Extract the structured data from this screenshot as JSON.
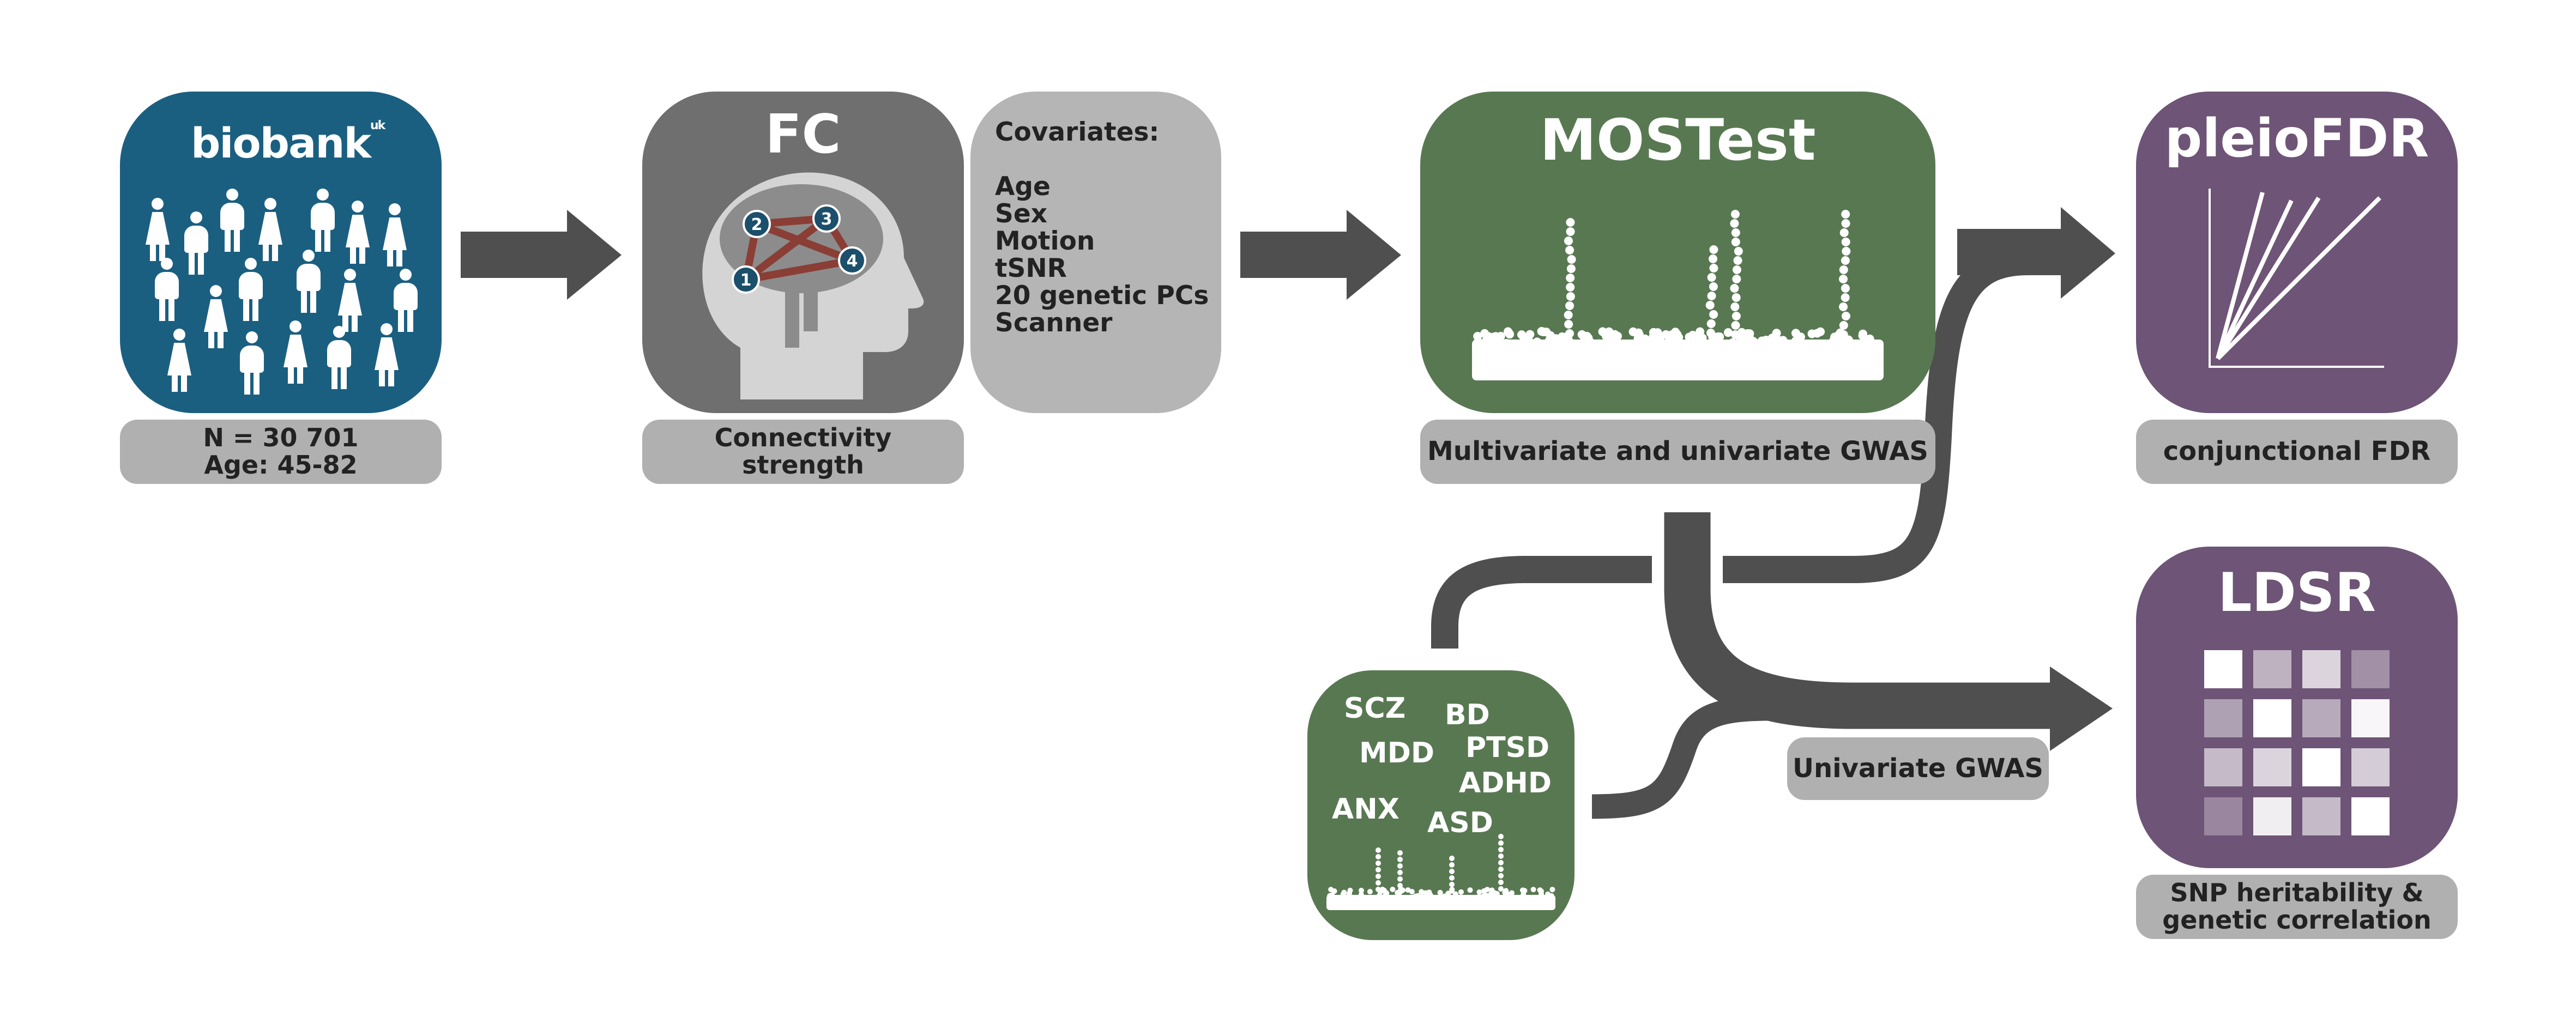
{
  "colors": {
    "biobank": "#1b5f80",
    "fc": "#6f6f6f",
    "covariates": "#b5b5b5",
    "mostest": "#587852",
    "disorders": "#587852",
    "purple": "#6e5476",
    "label_gray": "#b0b0b0",
    "arrow": "#4f4f4f",
    "edge_red": "#8a3e36"
  },
  "biobank": {
    "logo_text": "biobank",
    "logo_suffix": "uk",
    "caption": [
      "N = 30 701",
      "Age: 45-82"
    ]
  },
  "fc": {
    "title": "FC",
    "caption": [
      "Connectivity",
      "strength"
    ],
    "nodes": [
      "1",
      "2",
      "3",
      "4"
    ]
  },
  "covariates": {
    "heading": "Covariates:",
    "items": [
      "Age",
      "Sex",
      "Motion",
      "tSNR",
      "20 genetic PCs",
      "Scanner"
    ]
  },
  "mostest": {
    "title": "MOSTest",
    "caption": "Multivariate and univariate GWAS"
  },
  "pleiofdr": {
    "title": "pleioFDR",
    "caption": "conjunctional FDR"
  },
  "ldsr": {
    "title": "LDSR",
    "caption": [
      "SNP heritability &",
      "genetic correlation"
    ],
    "heatmap": [
      [
        1.0,
        0.55,
        0.75,
        0.35
      ],
      [
        0.45,
        1.0,
        0.5,
        0.95
      ],
      [
        0.6,
        0.75,
        1.0,
        0.7
      ],
      [
        0.3,
        0.9,
        0.6,
        1.0
      ]
    ]
  },
  "disorders": {
    "labels": [
      "SCZ",
      "BD",
      "MDD",
      "PTSD",
      "ADHD",
      "ANX",
      "ASD"
    ]
  },
  "univariate": {
    "caption": "Univariate GWAS"
  }
}
